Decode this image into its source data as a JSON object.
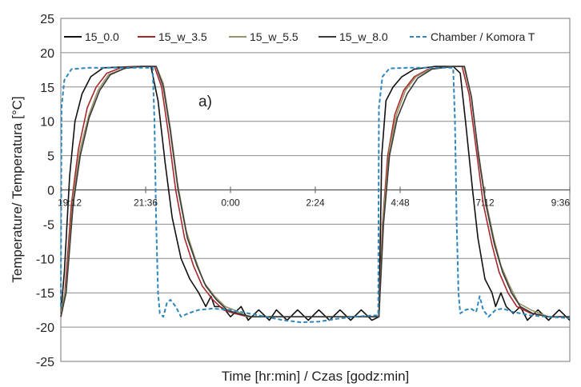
{
  "chart_data": {
    "type": "line",
    "title": "",
    "annotation": "a)",
    "xlabel": "Time [hr:min] / Czas [godz:min]",
    "ylabel": "Temperature/ Temperatura [°C]",
    "ylim": [
      -25,
      25
    ],
    "yticks": [
      -25,
      -20,
      -15,
      -10,
      -5,
      0,
      5,
      10,
      15,
      20,
      25
    ],
    "xlim_hours": [
      19.2,
      33.6
    ],
    "xticks": [
      {
        "label": "19:12",
        "t": 19.2
      },
      {
        "label": "21:36",
        "t": 21.6
      },
      {
        "label": "0:00",
        "t": 24.0
      },
      {
        "label": "2:24",
        "t": 26.4
      },
      {
        "label": "4:48",
        "t": 28.8
      },
      {
        "label": "7:12",
        "t": 31.2
      },
      {
        "label": "9:36",
        "t": 33.6
      }
    ],
    "grid": "horizontal",
    "legend_position": "top",
    "series": [
      {
        "name": "15_0.0",
        "color": "#111111",
        "dash": "solid",
        "points": [
          [
            19.2,
            -18
          ],
          [
            19.3,
            -12
          ],
          [
            19.45,
            2
          ],
          [
            19.6,
            10
          ],
          [
            19.8,
            14
          ],
          [
            20.05,
            16.5
          ],
          [
            20.4,
            17.8
          ],
          [
            21.4,
            18
          ],
          [
            21.75,
            18
          ],
          [
            21.95,
            13
          ],
          [
            22.15,
            4
          ],
          [
            22.35,
            -4
          ],
          [
            22.6,
            -10
          ],
          [
            22.85,
            -13
          ],
          [
            23.1,
            -15
          ],
          [
            23.3,
            -17
          ],
          [
            23.45,
            -15.5
          ],
          [
            23.55,
            -17
          ],
          [
            23.7,
            -17
          ],
          [
            23.85,
            -17.5
          ],
          [
            24.0,
            -18.5
          ],
          [
            24.3,
            -17
          ],
          [
            24.5,
            -19
          ],
          [
            24.8,
            -17.5
          ],
          [
            25.1,
            -19
          ],
          [
            25.3,
            -17.5
          ],
          [
            25.6,
            -19
          ],
          [
            25.9,
            -17.5
          ],
          [
            26.2,
            -19
          ],
          [
            26.5,
            -17.5
          ],
          [
            26.8,
            -19
          ],
          [
            27.1,
            -17.5
          ],
          [
            27.4,
            -19
          ],
          [
            27.7,
            -17.5
          ],
          [
            28.0,
            -19
          ],
          [
            28.2,
            -18.5
          ],
          [
            28.28,
            5
          ],
          [
            28.4,
            13
          ],
          [
            28.6,
            15
          ],
          [
            28.85,
            16.5
          ],
          [
            29.2,
            17.6
          ],
          [
            29.8,
            18
          ],
          [
            30.3,
            18
          ],
          [
            30.5,
            17
          ],
          [
            30.65,
            10
          ],
          [
            30.85,
            0
          ],
          [
            31.0,
            -7
          ],
          [
            31.2,
            -13
          ],
          [
            31.4,
            -15
          ],
          [
            31.5,
            -17
          ],
          [
            31.65,
            -15
          ],
          [
            31.8,
            -17
          ],
          [
            32.0,
            -18
          ],
          [
            32.2,
            -17
          ],
          [
            32.4,
            -19
          ],
          [
            32.7,
            -17.5
          ],
          [
            33.0,
            -19
          ],
          [
            33.3,
            -17.5
          ],
          [
            33.6,
            -19
          ]
        ]
      },
      {
        "name": "15_w_3.5",
        "color": "#a8282a",
        "dash": "solid",
        "points": [
          [
            19.2,
            -18.5
          ],
          [
            19.3,
            -16
          ],
          [
            19.5,
            -2
          ],
          [
            19.7,
            6
          ],
          [
            19.95,
            12
          ],
          [
            20.2,
            15
          ],
          [
            20.5,
            17
          ],
          [
            20.9,
            17.8
          ],
          [
            21.5,
            18
          ],
          [
            21.85,
            18
          ],
          [
            22.05,
            15
          ],
          [
            22.25,
            8
          ],
          [
            22.45,
            0
          ],
          [
            22.7,
            -7
          ],
          [
            22.95,
            -11
          ],
          [
            23.2,
            -14
          ],
          [
            23.5,
            -16
          ],
          [
            23.8,
            -17.5
          ],
          [
            24.1,
            -18
          ],
          [
            24.5,
            -18.5
          ],
          [
            25.5,
            -18.5
          ],
          [
            26.5,
            -18.5
          ],
          [
            27.5,
            -18.5
          ],
          [
            28.2,
            -18.5
          ],
          [
            28.3,
            -5
          ],
          [
            28.45,
            5
          ],
          [
            28.65,
            11
          ],
          [
            28.9,
            14.5
          ],
          [
            29.2,
            16.5
          ],
          [
            29.6,
            17.6
          ],
          [
            30.3,
            18
          ],
          [
            30.55,
            18
          ],
          [
            30.75,
            14
          ],
          [
            30.95,
            6
          ],
          [
            31.15,
            -2
          ],
          [
            31.4,
            -8
          ],
          [
            31.6,
            -12
          ],
          [
            31.85,
            -15
          ],
          [
            32.1,
            -17
          ],
          [
            32.5,
            -18
          ],
          [
            33.0,
            -18.5
          ],
          [
            33.6,
            -18.5
          ]
        ]
      },
      {
        "name": "15_w_5.5",
        "color": "#9a9366",
        "dash": "solid",
        "points": [
          [
            19.2,
            -18
          ],
          [
            19.35,
            -14
          ],
          [
            19.55,
            -1
          ],
          [
            19.75,
            6
          ],
          [
            20.0,
            11
          ],
          [
            20.25,
            14.5
          ],
          [
            20.55,
            16.8
          ],
          [
            21.0,
            17.7
          ],
          [
            21.5,
            18
          ],
          [
            21.9,
            18
          ],
          [
            22.1,
            15.5
          ],
          [
            22.3,
            9
          ],
          [
            22.5,
            1
          ],
          [
            22.75,
            -6
          ],
          [
            23.0,
            -10
          ],
          [
            23.25,
            -13.5
          ],
          [
            23.55,
            -15.5
          ],
          [
            23.85,
            -17
          ],
          [
            24.1,
            -17.5
          ],
          [
            24.5,
            -18.5
          ],
          [
            25.5,
            -18.5
          ],
          [
            26.5,
            -18.5
          ],
          [
            27.5,
            -18.5
          ],
          [
            28.2,
            -18.5
          ],
          [
            28.32,
            -4
          ],
          [
            28.5,
            6
          ],
          [
            28.7,
            11
          ],
          [
            28.95,
            14.5
          ],
          [
            29.25,
            16.5
          ],
          [
            29.65,
            17.6
          ],
          [
            30.3,
            18
          ],
          [
            30.6,
            18
          ],
          [
            30.8,
            14
          ],
          [
            31.0,
            6
          ],
          [
            31.2,
            -1
          ],
          [
            31.45,
            -7
          ],
          [
            31.65,
            -11
          ],
          [
            31.9,
            -14
          ],
          [
            32.15,
            -16.5
          ],
          [
            32.5,
            -17.5
          ],
          [
            33.0,
            -18.5
          ],
          [
            33.6,
            -18.5
          ]
        ]
      },
      {
        "name": "15_w_8.0",
        "color": "#3a3a3a",
        "dash": "solid",
        "points": [
          [
            19.2,
            -18.5
          ],
          [
            19.35,
            -15
          ],
          [
            19.55,
            -2
          ],
          [
            19.75,
            5
          ],
          [
            20.0,
            10.5
          ],
          [
            20.3,
            14.5
          ],
          [
            20.6,
            16.8
          ],
          [
            21.0,
            17.7
          ],
          [
            21.5,
            18
          ],
          [
            21.9,
            18
          ],
          [
            22.1,
            15
          ],
          [
            22.3,
            8.5
          ],
          [
            22.52,
            0
          ],
          [
            22.78,
            -7
          ],
          [
            23.05,
            -11
          ],
          [
            23.3,
            -14
          ],
          [
            23.6,
            -16
          ],
          [
            23.9,
            -17.5
          ],
          [
            24.2,
            -18
          ],
          [
            24.6,
            -18.5
          ],
          [
            25.5,
            -18.5
          ],
          [
            26.5,
            -18.5
          ],
          [
            27.5,
            -18.5
          ],
          [
            28.2,
            -18.5
          ],
          [
            28.33,
            -5
          ],
          [
            28.5,
            5
          ],
          [
            28.72,
            10.5
          ],
          [
            29.0,
            14
          ],
          [
            29.3,
            16.3
          ],
          [
            29.7,
            17.6
          ],
          [
            30.3,
            18
          ],
          [
            30.62,
            18
          ],
          [
            30.82,
            13.5
          ],
          [
            31.02,
            5
          ],
          [
            31.22,
            -2
          ],
          [
            31.47,
            -8
          ],
          [
            31.7,
            -12
          ],
          [
            31.95,
            -15
          ],
          [
            32.2,
            -17
          ],
          [
            32.55,
            -18
          ],
          [
            33.0,
            -18.5
          ],
          [
            33.6,
            -18.5
          ]
        ]
      },
      {
        "name": "Chamber / Komora T",
        "color": "#2e87b8",
        "dash": "dashed",
        "points": [
          [
            19.2,
            -17
          ],
          [
            19.22,
            12
          ],
          [
            19.3,
            16
          ],
          [
            19.5,
            17.6
          ],
          [
            20.0,
            17.8
          ],
          [
            21.6,
            17.8
          ],
          [
            21.8,
            17.8
          ],
          [
            21.85,
            10
          ],
          [
            21.9,
            -5
          ],
          [
            21.95,
            -15
          ],
          [
            22.0,
            -18
          ],
          [
            22.1,
            -18.5
          ],
          [
            22.2,
            -16.5
          ],
          [
            22.3,
            -16
          ],
          [
            22.45,
            -17
          ],
          [
            22.6,
            -18.5
          ],
          [
            22.8,
            -18
          ],
          [
            23.1,
            -17.5
          ],
          [
            23.5,
            -17.3
          ],
          [
            24.0,
            -17.5
          ],
          [
            24.5,
            -18
          ],
          [
            25.0,
            -18.5
          ],
          [
            25.5,
            -19
          ],
          [
            26.0,
            -19.3
          ],
          [
            26.5,
            -19.2
          ],
          [
            27.0,
            -18.8
          ],
          [
            27.5,
            -18.5
          ],
          [
            28.0,
            -18.3
          ],
          [
            28.18,
            -18.3
          ],
          [
            28.2,
            12
          ],
          [
            28.3,
            16.5
          ],
          [
            28.5,
            17.7
          ],
          [
            29.0,
            17.8
          ],
          [
            30.2,
            17.8
          ],
          [
            30.3,
            17.8
          ],
          [
            30.35,
            10
          ],
          [
            30.4,
            -5
          ],
          [
            30.45,
            -15
          ],
          [
            30.5,
            -18
          ],
          [
            30.65,
            -17.5
          ],
          [
            30.8,
            -17.3
          ],
          [
            30.95,
            -17.8
          ],
          [
            31.05,
            -15.5
          ],
          [
            31.15,
            -17.5
          ],
          [
            31.3,
            -18.5
          ],
          [
            31.5,
            -17.5
          ],
          [
            31.7,
            -17.3
          ],
          [
            32.0,
            -17.8
          ],
          [
            32.5,
            -18.3
          ],
          [
            33.0,
            -18.5
          ],
          [
            33.6,
            -18.7
          ]
        ]
      }
    ]
  }
}
